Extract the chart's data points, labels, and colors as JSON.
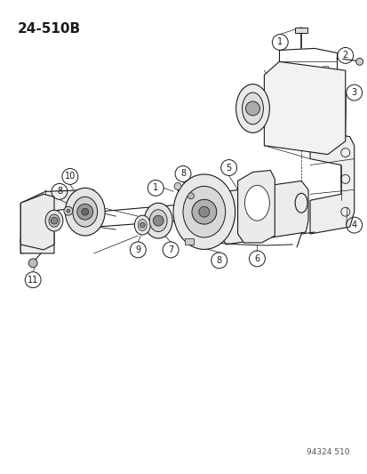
{
  "title": "24-510B",
  "watermark": "94324 510",
  "bg_color": "#ffffff",
  "line_color": "#1a1a1a",
  "figsize": [
    4.14,
    5.33
  ],
  "dpi": 100,
  "title_fontsize": 11,
  "label_fontsize": 7,
  "label_circle_r": 0.018
}
